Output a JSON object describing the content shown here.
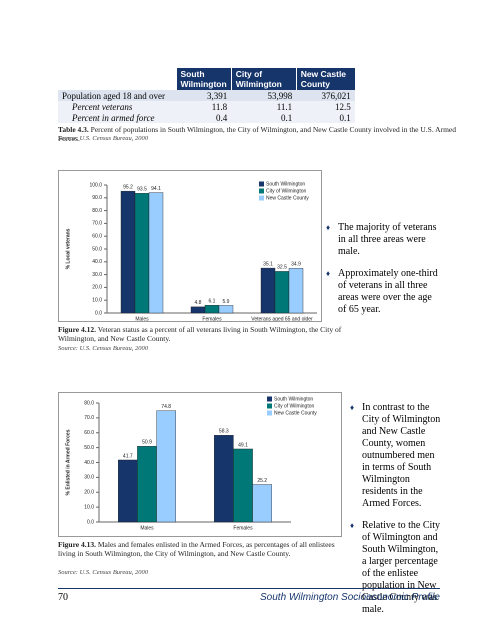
{
  "table": {
    "header": [
      "South Wilmington",
      "City of Wilmington",
      "New Castle County"
    ],
    "rows": [
      [
        "Population aged 18 and over",
        "3,391",
        "53,998",
        "376,021"
      ],
      [
        "Percent veterans",
        "11.8",
        "11.1",
        "12.5"
      ],
      [
        "Percent in armed force",
        "0.4",
        "0.1",
        "0.1"
      ]
    ],
    "caption_label": "Table 4.3.",
    "caption": "Percent of populations in South Wilmington, the City of Wilmington, and New Castle County involved in the U.S. Armed Forces.",
    "source": "Source: U.S. Census Bureau, 2000"
  },
  "chart_data": [
    {
      "type": "bar",
      "ylabel": "% Local veterans",
      "categories": [
        "Males",
        "Females",
        "Veterans aged 65 and older"
      ],
      "series": [
        {
          "name": "South Wilmington",
          "color": "#16356b",
          "values": [
            95.2,
            4.8,
            35.1
          ]
        },
        {
          "name": "City of Wilmington",
          "color": "#007878",
          "values": [
            93.5,
            6.1,
            32.5
          ]
        },
        {
          "name": "New Castle County",
          "color": "#99ccff",
          "values": [
            94.1,
            5.9,
            34.9
          ]
        }
      ],
      "ylim": [
        0,
        100
      ],
      "yticks": [
        {
          "value": 0,
          "label": "0.0"
        },
        {
          "value": 10,
          "label": "10.0"
        },
        {
          "value": 20,
          "label": "20.0"
        },
        {
          "value": 30,
          "label": "30.0"
        },
        {
          "value": 40,
          "label": "40.0"
        },
        {
          "value": 50,
          "label": "50.0"
        },
        {
          "value": 60,
          "label": "60.0"
        },
        {
          "value": 70,
          "label": "70.0"
        },
        {
          "value": 80,
          "label": "80.0"
        },
        {
          "value": 90,
          "label": "90.0"
        },
        {
          "value": 100,
          "label": "100.0"
        }
      ],
      "caption_label": "Figure 4.12.",
      "caption": "Veteran status as a percent of all veterans living in South Wilmington, the City of Wilmington, and New Castle County.",
      "source": "Source: U.S. Census Bureau, 2000",
      "bullets": [
        "The majority of veterans in all three areas were male.",
        "Approximately one-third of veterans in all three areas were over the age of 65 year."
      ]
    },
    {
      "type": "bar",
      "ylabel": "% Enlisted in Armed Forces",
      "categories": [
        "Males",
        "Females"
      ],
      "series": [
        {
          "name": "South Wilmington",
          "color": "#16356b",
          "values": [
            41.7,
            58.3
          ]
        },
        {
          "name": "City of Wilmington",
          "color": "#007878",
          "values": [
            50.9,
            49.1
          ]
        },
        {
          "name": "New Castle County",
          "color": "#99ccff",
          "values": [
            74.8,
            25.2
          ]
        }
      ],
      "ylim": [
        0,
        80
      ],
      "yticks": [
        {
          "value": 0,
          "label": "0.0"
        },
        {
          "value": 10,
          "label": "10.0"
        },
        {
          "value": 20,
          "label": "20.0"
        },
        {
          "value": 30,
          "label": "30.0"
        },
        {
          "value": 40,
          "label": "40.0"
        },
        {
          "value": 50,
          "label": "50.0"
        },
        {
          "value": 60,
          "label": "60.0"
        },
        {
          "value": 70,
          "label": "70.0"
        },
        {
          "value": 80,
          "label": "80.0"
        }
      ],
      "caption_label": "Figure 4.13.",
      "caption": "Males and females enlisted in the Armed Forces, as percentages of all enlistees living in South Wilmington, the City of Wilmington, and New Castle County.",
      "source": "Source: U.S. Census Bureau, 2000",
      "bullets": [
        "In contrast to the City of Wilmington and New Castle County, women outnumbered men in terms of South Wilmington residents in the Armed Forces.",
        "Relative to the City of Wilmington and South Wilmington, a larger percentage of the enlistee population in New Castle County was male."
      ]
    }
  ],
  "footer": {
    "page": "70",
    "title": "South Wilmington Socioeconomic Profile"
  }
}
